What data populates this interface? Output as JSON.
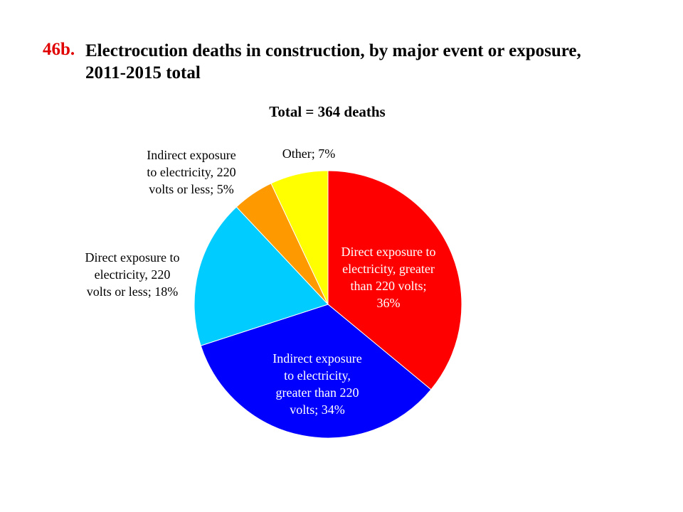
{
  "title": {
    "number": "46b.",
    "line1": "Electrocution deaths in construction, by major event or exposure,",
    "line2": "2011-2015 total"
  },
  "chart_data": {
    "type": "pie",
    "subtitle": "Total = 364 deaths",
    "slices": [
      {
        "label_lines": [
          "Direct exposure to",
          "electricity, greater",
          "than 220 volts;",
          "36%"
        ],
        "value": 36,
        "color": "#ff0000",
        "label_color": "#ffffff",
        "label_position": "inside"
      },
      {
        "label_lines": [
          "Indirect exposure",
          "to electricity,",
          "greater than 220",
          "volts; 34%"
        ],
        "value": 34,
        "color": "#0000ff",
        "label_color": "#ffffff",
        "label_position": "inside"
      },
      {
        "label_lines": [
          "Direct exposure to",
          "electricity, 220",
          "volts or less; 18%"
        ],
        "value": 18,
        "color": "#00ccff",
        "label_color": "#000000",
        "label_position": "outside"
      },
      {
        "label_lines": [
          "Indirect exposure",
          "to electricity, 220",
          "volts or less; 5%"
        ],
        "value": 5,
        "color": "#ff9900",
        "label_color": "#000000",
        "label_position": "outside"
      },
      {
        "label_lines": [
          "Other; 7%"
        ],
        "value": 7,
        "color": "#ffff00",
        "label_color": "#000000",
        "label_position": "outside"
      }
    ]
  }
}
